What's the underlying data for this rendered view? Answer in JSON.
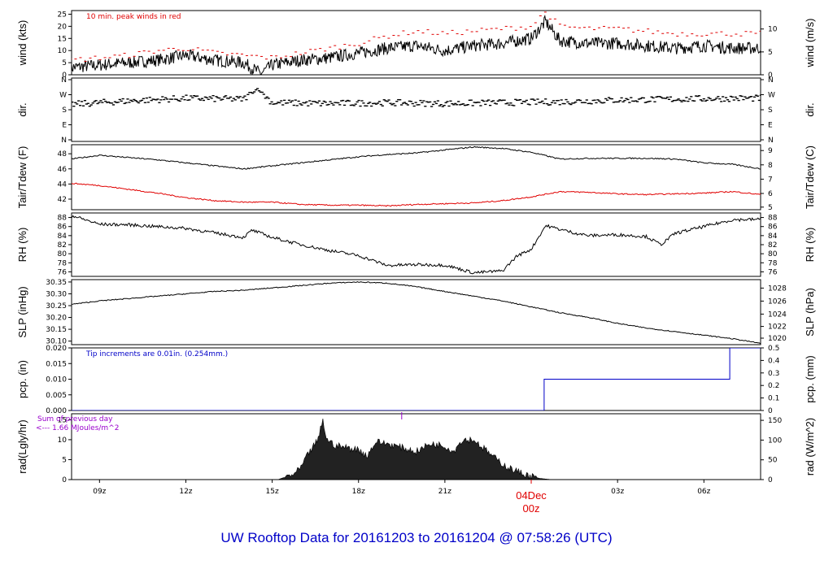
{
  "chart_data": {
    "type": "line",
    "title": "UW Rooftop Data for 20161203  to  20161204 @ 07:58:26  (UTC)",
    "x_ticks": [
      "09z",
      "12z",
      "15z",
      "18z",
      "21z",
      "03z",
      "06z"
    ],
    "date_label": {
      "date": "04Dec",
      "time": "00z"
    },
    "x_hours": [
      8.03,
      31.97
    ],
    "panels": [
      {
        "id": "wind",
        "ylabel_left": "wind (kts)",
        "ylabel_right": "wind (m/s)",
        "yticks_left": [
          0,
          5,
          10,
          15,
          20,
          25
        ],
        "yticks_right": [
          0,
          5,
          10
        ],
        "ylim": [
          0,
          26.5
        ],
        "annotation": "10 min. peak winds in red",
        "series": [
          {
            "color": "#000000",
            "x": [
              8.0,
              9.0,
              10.0,
              11.0,
              12.0,
              13.0,
              14.0,
              14.6,
              15.0,
              16.0,
              17.0,
              18.0,
              19.0,
              20.0,
              21.0,
              22.0,
              23.0,
              24.0,
              24.5,
              25.0,
              26.0,
              27.0,
              28.0,
              29.0,
              30.0,
              31.0,
              32.0
            ],
            "y": [
              3,
              4,
              5,
              6,
              8,
              6,
              5,
              0.5,
              4,
              6,
              7,
              9,
              11,
              12,
              10,
              12,
              13,
              15,
              22,
              14,
              13,
              13,
              12,
              11,
              12,
              11,
              11
            ]
          },
          {
            "color": "#e00000",
            "x": [
              8.0,
              9.0,
              10.0,
              11.0,
              12.0,
              13.0,
              14.0,
              15.0,
              16.0,
              17.0,
              18.0,
              19.0,
              20.0,
              21.0,
              22.0,
              23.0,
              24.0,
              24.5,
              25.0,
              26.0,
              27.0,
              28.0,
              29.0,
              30.0,
              31.0,
              32.0
            ],
            "y": [
              6,
              7,
              8,
              10,
              11,
              9,
              8,
              7,
              9,
              11,
              13,
              16,
              18,
              17,
              18,
              19,
              20,
              26,
              20,
              19,
              19,
              18,
              17,
              17,
              17,
              17
            ]
          }
        ]
      },
      {
        "id": "dir",
        "ylabel_left": "dir.",
        "ylabel_right": "dir.",
        "yticks_left": [
          "N",
          "E",
          "S",
          "W",
          "N"
        ],
        "yticks_right": [
          "N",
          "E",
          "S",
          "W",
          "N"
        ],
        "ylim": [
          0,
          360
        ],
        "series": [
          {
            "color": "#000000",
            "x": [
              8.0,
              10.0,
              12.0,
              14.0,
              14.5,
              15.0,
              17.0,
              19.0,
              21.0,
              23.0,
              25.0,
              27.0,
              29.0,
              31.0,
              32.0
            ],
            "y": [
              210,
              230,
              245,
              240,
              300,
              220,
              215,
              220,
              215,
              220,
              225,
              235,
              240,
              245,
              245
            ]
          }
        ]
      },
      {
        "id": "temp",
        "ylabel_left": "Tair/Tdew (F)",
        "ylabel_right": "Tair/Tdew (C)",
        "yticks_left": [
          42,
          44,
          46,
          48
        ],
        "yticks_right": [
          5,
          6,
          7,
          8,
          9
        ],
        "ylim": [
          40.6,
          49.2
        ],
        "series": [
          {
            "color": "#000000",
            "x": [
              8.0,
              9.0,
              10.0,
              11.0,
              12.0,
              13.0,
              14.0,
              15.0,
              16.0,
              17.0,
              18.0,
              19.0,
              20.0,
              21.0,
              22.0,
              23.0,
              24.0,
              25.0,
              26.0,
              27.0,
              28.0,
              29.0,
              30.0,
              31.0,
              32.0
            ],
            "y": [
              47.3,
              47.8,
              47.5,
              47.2,
              46.8,
              46.4,
              46.0,
              46.4,
              46.8,
              47.2,
              47.6,
              47.9,
              48.1,
              48.5,
              48.9,
              48.7,
              48.2,
              47.3,
              47.4,
              47.4,
              47.4,
              47.3,
              46.8,
              46.6,
              46.0
            ]
          },
          {
            "color": "#e00000",
            "x": [
              8.0,
              9.0,
              10.0,
              11.0,
              12.0,
              13.0,
              14.0,
              15.0,
              16.0,
              17.0,
              18.0,
              19.0,
              20.0,
              21.0,
              22.0,
              23.0,
              24.0,
              25.0,
              26.0,
              27.0,
              28.0,
              29.0,
              30.0,
              31.0,
              32.0
            ],
            "y": [
              44.1,
              43.8,
              43.3,
              42.8,
              42.2,
              41.8,
              41.6,
              41.6,
              41.3,
              41.2,
              41.2,
              41.1,
              41.3,
              41.4,
              41.5,
              41.8,
              42.3,
              43.0,
              42.9,
              42.7,
              42.6,
              42.7,
              42.8,
              43.0,
              42.6
            ]
          }
        ]
      },
      {
        "id": "rh",
        "ylabel_left": "RH (%)",
        "ylabel_right": "RH (%)",
        "yticks_left": [
          76,
          78,
          80,
          82,
          84,
          86,
          88
        ],
        "yticks_right": [
          76,
          78,
          80,
          82,
          84,
          86,
          88
        ],
        "ylim": [
          75,
          89
        ],
        "series": [
          {
            "color": "#000000",
            "x": [
              8.0,
              9.0,
              10.0,
              11.0,
              12.0,
              13.0,
              14.0,
              14.3,
              15.0,
              16.0,
              17.0,
              18.0,
              19.0,
              20.0,
              21.0,
              22.0,
              23.0,
              23.5,
              24.0,
              24.5,
              25.0,
              25.5,
              26.0,
              27.0,
              28.0,
              28.5,
              29.0,
              30.0,
              31.0,
              32.0
            ],
            "y": [
              88.5,
              86.5,
              86.4,
              86.0,
              85.6,
              84.6,
              83.6,
              85.2,
              83.6,
              82.0,
              80.7,
              79.6,
              77.4,
              77.6,
              77.5,
              75.8,
              76.2,
              79.5,
              81.0,
              86.2,
              85.4,
              84.6,
              84.0,
              84.2,
              83.8,
              82.0,
              84.5,
              86.0,
              87.5,
              87.6
            ]
          }
        ]
      },
      {
        "id": "slp",
        "ylabel_left": "SLP (inHg)",
        "ylabel_right": "SLP (hPa)",
        "yticks_left": [
          30.1,
          30.15,
          30.2,
          30.25,
          30.3,
          30.35
        ],
        "yticks_right": [
          1020,
          1022,
          1024,
          1026,
          1028
        ],
        "ylim": [
          30.085,
          30.36
        ],
        "series": [
          {
            "color": "#000000",
            "x": [
              8.0,
              9.0,
              10.0,
              11.0,
              12.0,
              13.0,
              14.0,
              15.0,
              16.0,
              17.0,
              18.0,
              19.0,
              20.0,
              21.0,
              22.0,
              23.0,
              24.0,
              25.0,
              26.0,
              27.0,
              28.0,
              29.0,
              30.0,
              31.0,
              32.0
            ],
            "y": [
              30.255,
              30.27,
              30.28,
              30.29,
              30.3,
              30.31,
              30.315,
              30.325,
              30.335,
              30.345,
              30.35,
              30.345,
              30.33,
              30.31,
              30.29,
              30.27,
              30.245,
              30.22,
              30.2,
              30.175,
              30.155,
              30.14,
              30.125,
              30.11,
              30.09
            ]
          }
        ]
      },
      {
        "id": "pcp",
        "ylabel_left": "pcp. (in)",
        "ylabel_right": "pcp. (mm)",
        "yticks_left": [
          0.0,
          0.005,
          0.01,
          0.015,
          0.02
        ],
        "yticks_right": [
          0,
          0.1,
          0.2,
          0.3,
          0.4,
          0.5
        ],
        "ylim": [
          0,
          0.02
        ],
        "annotation": "Tip increments are 0.01in. (0.254mm.)",
        "series": [
          {
            "color": "#0000c8",
            "step": true,
            "x": [
              8.0,
              24.45,
              24.45,
              30.9,
              30.9,
              32.0
            ],
            "y": [
              0,
              0,
              0.01,
              0.01,
              0.02,
              0.02
            ]
          }
        ]
      },
      {
        "id": "rad",
        "ylabel_left": "rad(Lgly/hr)",
        "ylabel_right": "rad (W/m^2)",
        "yticks_left": [
          0,
          5,
          10,
          15
        ],
        "yticks_right": [
          0,
          50,
          100,
          150
        ],
        "ylim": [
          0,
          16.5
        ],
        "annotation": "Sum of previous day",
        "annotation2": "<--- 1.66 MJoules/m^2",
        "series": [
          {
            "color": "#222222",
            "fill": true,
            "x": [
              15.2,
              15.8,
              16.0,
              16.3,
              16.6,
              16.75,
              16.9,
              17.2,
              17.6,
              18.0,
              18.3,
              18.6,
              19.0,
              19.5,
              20.0,
              20.5,
              21.0,
              21.3,
              21.6,
              22.0,
              22.4,
              22.8,
              23.2,
              23.6,
              24.0,
              24.3,
              24.7
            ],
            "y": [
              0,
              1.5,
              3,
              7,
              10,
              15,
              10,
              8.5,
              8,
              7.5,
              6,
              9.5,
              9,
              8,
              7,
              9,
              8.5,
              7,
              10,
              10,
              7.5,
              5,
              3,
              1.8,
              0.8,
              0.3,
              0
            ]
          }
        ]
      }
    ]
  }
}
